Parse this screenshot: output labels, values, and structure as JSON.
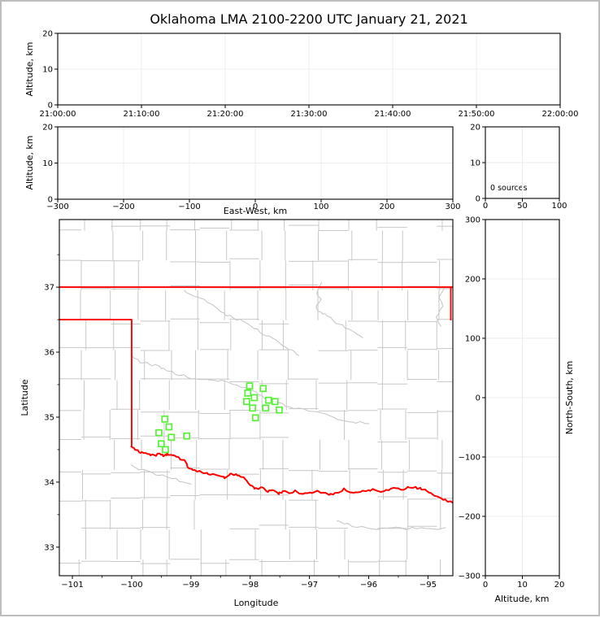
{
  "title": "Oklahoma LMA 2100-2200 UTC January 21, 2021",
  "panels": {
    "time_height": {
      "ylabel": "Altitude, km",
      "yticks": [
        "0",
        "10",
        "20"
      ],
      "xticks": [
        "21:00:00",
        "21:10:00",
        "21:20:00",
        "21:30:00",
        "21:40:00",
        "21:50:00",
        "22:00:00"
      ]
    },
    "ew_height": {
      "xlabel": "East-West, km",
      "ylabel": "Altitude, km",
      "xticks": [
        "−300",
        "−200",
        "−100",
        "0",
        "100",
        "200",
        "300"
      ],
      "yticks": [
        "0",
        "10",
        "20"
      ]
    },
    "src_histogram": {
      "annotation": "0 sources",
      "xticks": [
        "0",
        "50",
        "100"
      ],
      "yticks": [
        "0",
        "10",
        "20"
      ]
    },
    "map": {
      "xlabel": "Longitude",
      "ylabel": "Latitude",
      "xticks": [
        "−101",
        "−100",
        "−99",
        "−98",
        "−97",
        "−96",
        "−95"
      ],
      "yticks": [
        "33",
        "34",
        "35",
        "36",
        "37"
      ]
    },
    "ns_height": {
      "xlabel": "Altitude, km",
      "ylabel": "North-South, km",
      "xticks": [
        "0",
        "10",
        "20"
      ],
      "yticks": [
        "300",
        "200",
        "100",
        "0",
        "−100",
        "−200",
        "−300"
      ]
    }
  },
  "colors": {
    "state_border": "#ff0000",
    "county_line": "#c8c8c8",
    "station_marker": "#55f235",
    "gridline": "#ececec",
    "axis": "#000000"
  },
  "chart_data": {
    "type": "scatter",
    "figure_title": "Oklahoma LMA 2100-2200 UTC January 21, 2021",
    "sources_count": 0,
    "panels": [
      {
        "id": "time-altitude",
        "type": "scatter",
        "xlim": [
          "21:00:00",
          "22:00:00"
        ],
        "ylabel": "Altitude, km",
        "ylim": [
          0,
          20
        ],
        "points": [],
        "grid": true
      },
      {
        "id": "eastwest-altitude",
        "type": "scatter",
        "xlabel": "East-West, km",
        "xlim": [
          -300,
          300
        ],
        "ylabel": "Altitude, km",
        "ylim": [
          0,
          20
        ],
        "points": [],
        "grid": true
      },
      {
        "id": "altitude-histogram",
        "type": "histogram",
        "xlim": [
          0,
          100
        ],
        "ylim": [
          0,
          20
        ],
        "annotation": "0 sources",
        "values": [],
        "grid": true
      },
      {
        "id": "plan-view-map",
        "type": "scatter",
        "xlabel": "Longitude",
        "xlim": [
          -101.22,
          -94.58
        ],
        "ylabel": "Latitude",
        "ylim": [
          32.56,
          38.04
        ],
        "grid": false
      },
      {
        "id": "northsouth-altitude",
        "type": "scatter",
        "xlabel": "Altitude, km",
        "xlim": [
          0,
          20
        ],
        "ylabel": "North-South, km",
        "ylim": [
          -300,
          300
        ],
        "points": [],
        "grid": true
      }
    ],
    "map": {
      "stations": [
        [
          -99.44,
          34.97
        ],
        [
          -99.37,
          34.85
        ],
        [
          -99.54,
          34.76
        ],
        [
          -99.33,
          34.69
        ],
        [
          -99.07,
          34.71
        ],
        [
          -99.5,
          34.59
        ],
        [
          -99.43,
          34.5
        ],
        [
          -98.01,
          35.48
        ],
        [
          -97.78,
          35.44
        ],
        [
          -98.04,
          35.37
        ],
        [
          -97.93,
          35.3
        ],
        [
          -98.06,
          35.24
        ],
        [
          -97.69,
          35.26
        ],
        [
          -97.58,
          35.24
        ],
        [
          -97.96,
          35.14
        ],
        [
          -97.74,
          35.14
        ],
        [
          -97.51,
          35.11
        ],
        [
          -97.91,
          34.99
        ]
      ],
      "state_border": {
        "north": [
          [
            -101.22,
            37.0
          ],
          [
            -94.58,
            37.0
          ]
        ],
        "east": [
          [
            -94.615,
            37.0
          ],
          [
            -94.615,
            36.5
          ]
        ],
        "panhandle_west": [
          [
            -101.22,
            36.5
          ],
          [
            -100.0,
            36.5
          ],
          [
            -100.0,
            34.555
          ]
        ],
        "red_river": [
          [
            -100.0,
            34.555
          ],
          [
            -99.93,
            34.5
          ],
          [
            -99.85,
            34.46
          ],
          [
            -99.76,
            34.44
          ],
          [
            -99.68,
            34.42
          ],
          [
            -99.6,
            34.4
          ],
          [
            -99.53,
            34.44
          ],
          [
            -99.46,
            34.4
          ],
          [
            -99.4,
            34.44
          ],
          [
            -99.33,
            34.41
          ],
          [
            -99.26,
            34.4
          ],
          [
            -99.2,
            34.37
          ],
          [
            -99.12,
            34.34
          ],
          [
            -99.05,
            34.24
          ],
          [
            -98.96,
            34.2
          ],
          [
            -98.86,
            34.16
          ],
          [
            -98.74,
            34.14
          ],
          [
            -98.62,
            34.12
          ],
          [
            -98.5,
            34.1
          ],
          [
            -98.42,
            34.07
          ],
          [
            -98.34,
            34.13
          ],
          [
            -98.25,
            34.11
          ],
          [
            -98.15,
            34.09
          ],
          [
            -98.05,
            34.01
          ],
          [
            -97.97,
            33.93
          ],
          [
            -97.89,
            33.9
          ],
          [
            -97.8,
            33.92
          ],
          [
            -97.71,
            33.85
          ],
          [
            -97.62,
            33.88
          ],
          [
            -97.53,
            33.82
          ],
          [
            -97.44,
            33.86
          ],
          [
            -97.34,
            33.83
          ],
          [
            -97.23,
            33.86
          ],
          [
            -97.12,
            33.82
          ],
          [
            -97.0,
            33.84
          ],
          [
            -96.88,
            33.86
          ],
          [
            -96.76,
            33.83
          ],
          [
            -96.64,
            33.81
          ],
          [
            -96.52,
            33.83
          ],
          [
            -96.41,
            33.89
          ],
          [
            -96.3,
            33.85
          ],
          [
            -96.18,
            33.83
          ],
          [
            -96.05,
            33.87
          ],
          [
            -95.92,
            33.88
          ],
          [
            -95.79,
            33.86
          ],
          [
            -95.66,
            33.88
          ],
          [
            -95.54,
            33.92
          ],
          [
            -95.42,
            33.88
          ],
          [
            -95.3,
            33.93
          ],
          [
            -95.18,
            33.91
          ],
          [
            -95.06,
            33.89
          ],
          [
            -94.94,
            33.82
          ],
          [
            -94.83,
            33.77
          ],
          [
            -94.72,
            33.72
          ],
          [
            -94.58,
            33.68
          ]
        ]
      },
      "rivers": [
        [
          [
            -99.12,
            36.96
          ],
          [
            -98.95,
            36.86
          ],
          [
            -98.78,
            36.82
          ],
          [
            -98.62,
            36.7
          ],
          [
            -98.45,
            36.6
          ],
          [
            -98.3,
            36.52
          ],
          [
            -98.12,
            36.48
          ],
          [
            -97.95,
            36.38
          ],
          [
            -97.78,
            36.28
          ],
          [
            -97.6,
            36.22
          ],
          [
            -97.45,
            36.1
          ],
          [
            -97.3,
            36.02
          ],
          [
            -97.18,
            35.95
          ]
        ],
        [
          [
            -96.8,
            37.05
          ],
          [
            -96.88,
            36.92
          ],
          [
            -96.82,
            36.8
          ],
          [
            -96.9,
            36.7
          ],
          [
            -96.8,
            36.62
          ],
          [
            -96.7,
            36.55
          ],
          [
            -96.55,
            36.45
          ],
          [
            -96.4,
            36.38
          ],
          [
            -96.25,
            36.3
          ],
          [
            -96.1,
            36.22
          ]
        ],
        [
          [
            -100.0,
            35.92
          ],
          [
            -99.85,
            35.85
          ],
          [
            -99.7,
            35.82
          ],
          [
            -99.55,
            35.78
          ],
          [
            -99.4,
            35.72
          ],
          [
            -99.2,
            35.65
          ],
          [
            -99.0,
            35.6
          ],
          [
            -98.8,
            35.58
          ],
          [
            -98.6,
            35.56
          ],
          [
            -98.4,
            35.55
          ],
          [
            -98.2,
            35.48
          ],
          [
            -98.05,
            35.44
          ],
          [
            -97.9,
            35.38
          ],
          [
            -97.75,
            35.3
          ],
          [
            -97.58,
            35.22
          ],
          [
            -97.4,
            35.18
          ],
          [
            -97.2,
            35.12
          ],
          [
            -97.0,
            35.1
          ],
          [
            -96.8,
            35.05
          ],
          [
            -96.6,
            35.0
          ],
          [
            -96.4,
            34.95
          ],
          [
            -96.2,
            34.92
          ],
          [
            -96.0,
            34.9
          ]
        ],
        [
          [
            -100.0,
            34.25
          ],
          [
            -99.8,
            34.18
          ],
          [
            -99.6,
            34.12
          ],
          [
            -99.4,
            34.08
          ],
          [
            -99.2,
            34.02
          ],
          [
            -99.0,
            33.97
          ]
        ],
        [
          [
            -96.55,
            33.42
          ],
          [
            -96.35,
            33.35
          ],
          [
            -96.1,
            33.3
          ],
          [
            -95.85,
            33.28
          ],
          [
            -95.6,
            33.3
          ],
          [
            -95.35,
            33.28
          ],
          [
            -95.1,
            33.3
          ],
          [
            -94.9,
            33.28
          ],
          [
            -94.7,
            33.3
          ]
        ],
        [
          [
            -94.72,
            37.0
          ],
          [
            -94.82,
            36.85
          ],
          [
            -94.75,
            36.7
          ],
          [
            -94.86,
            36.55
          ],
          [
            -94.78,
            36.4
          ]
        ]
      ]
    }
  }
}
